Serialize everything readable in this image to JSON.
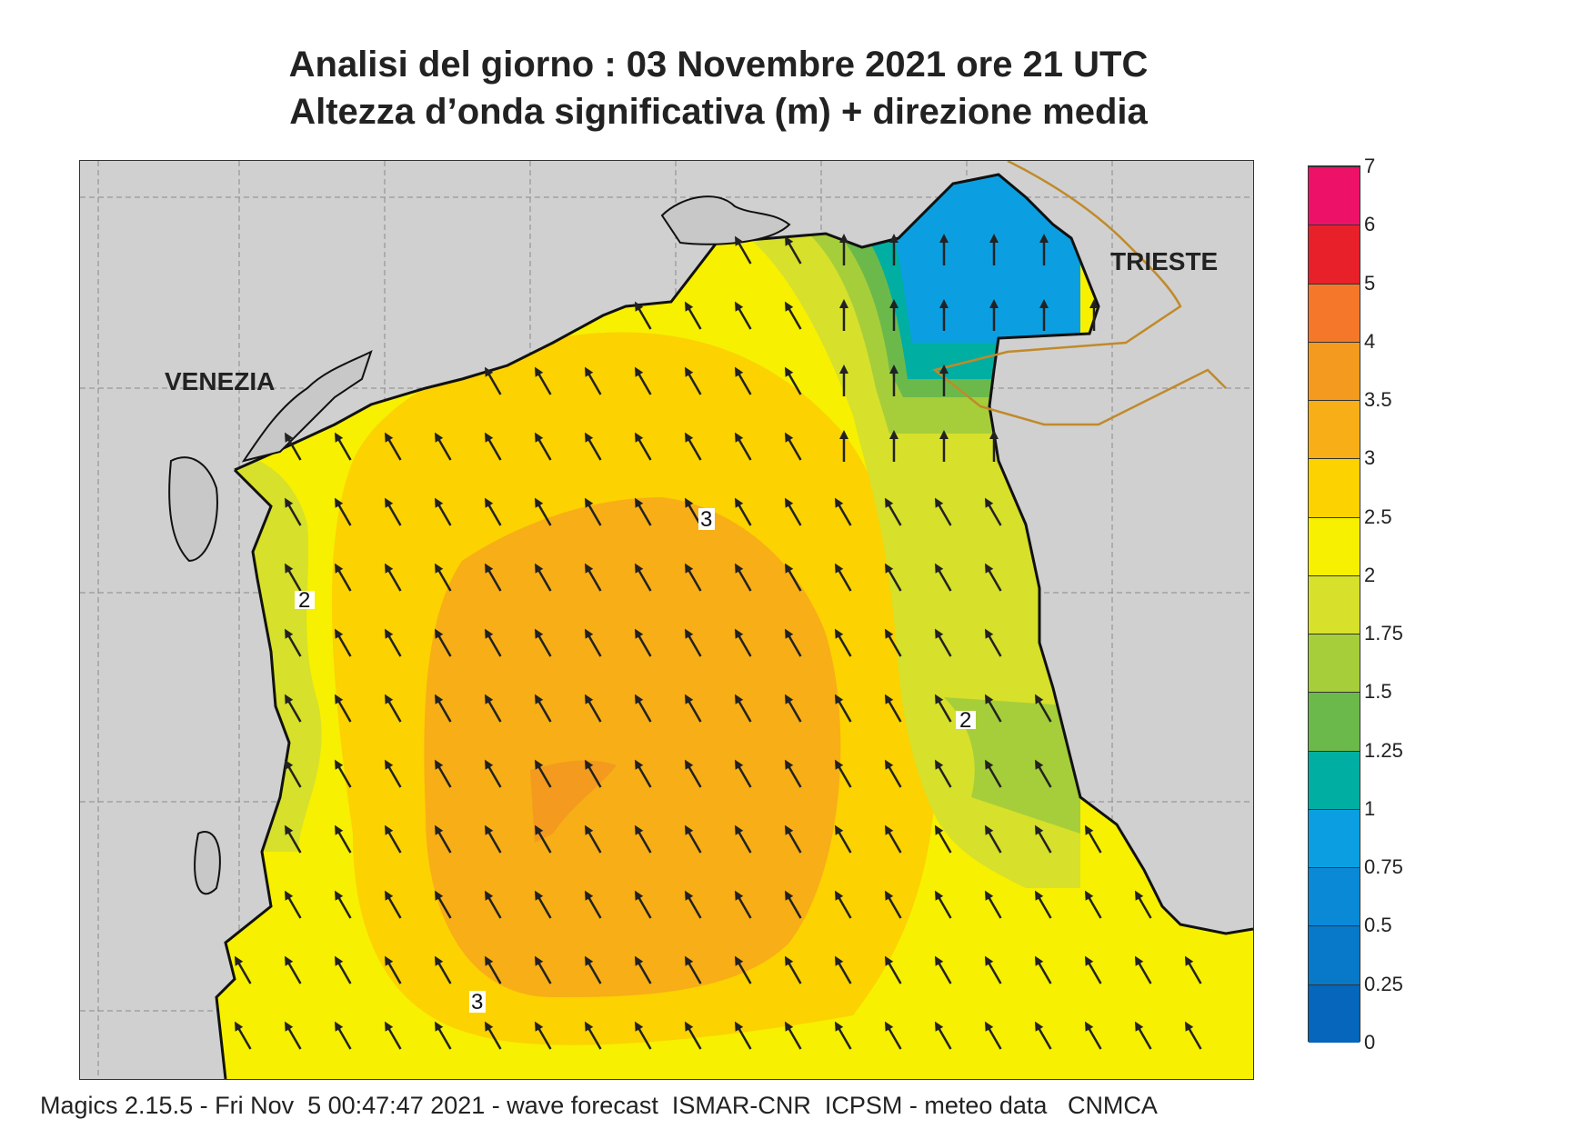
{
  "title_line1": "Analisi del giorno :  03 Novembre  2021   ore 21 UTC",
  "title_line2": "Altezza d’onda significativa (m) + direzione media",
  "places": {
    "venezia": "VENEZIA",
    "trieste": "TRIESTE"
  },
  "contour_labels": {
    "north": "3",
    "south": "3",
    "west": "2",
    "east": "2"
  },
  "footer": "Magics 2.15.5 - Fri Nov  5 00:47:47 2021 - wave forecast  ISMAR-CNR  ICPSM - meteo data   CNMCA",
  "colors": {
    "land": "#d0d0d0",
    "sea_2_2.5": "#f7f000",
    "sea_2.5_3": "#fcd200",
    "sea_3_3.5": "#f8ae17",
    "sea_3.5_4": "#f39a1f",
    "sea_1.75_2": "#d7e02a",
    "sea_1.5_1.75": "#a6ce3a",
    "sea_1.25_1.5": "#6cb94b",
    "sea_1_1.25": "#00aea2",
    "sea_0.75_1": "#0b9fe1",
    "arrow": "#222222",
    "coast": "#111111",
    "border": "#c08a2a"
  },
  "colorbar": {
    "title": "Altezza d’onda significativa (m)",
    "labels": [
      "7",
      "6",
      "5",
      "4",
      "3.5",
      "3",
      "2.5",
      "2",
      "1.75",
      "1.5",
      "1.25",
      "1",
      "0.75",
      "0.5",
      "0.25",
      "0"
    ],
    "colors": [
      "#ee1168",
      "#e8202a",
      "#f5782a",
      "#f39a1f",
      "#f8ae17",
      "#fcd200",
      "#f7f000",
      "#d7e02a",
      "#a6ce3a",
      "#6cb94b",
      "#00aea2",
      "#0b9fe1",
      "#0a8ad6",
      "#0878c8",
      "#0566bb"
    ]
  },
  "wave_direction": {
    "description_units": "degrees (direction arrows point toward)",
    "main_field_angle_deg": -30,
    "northeast_field_angle_deg": 0
  }
}
